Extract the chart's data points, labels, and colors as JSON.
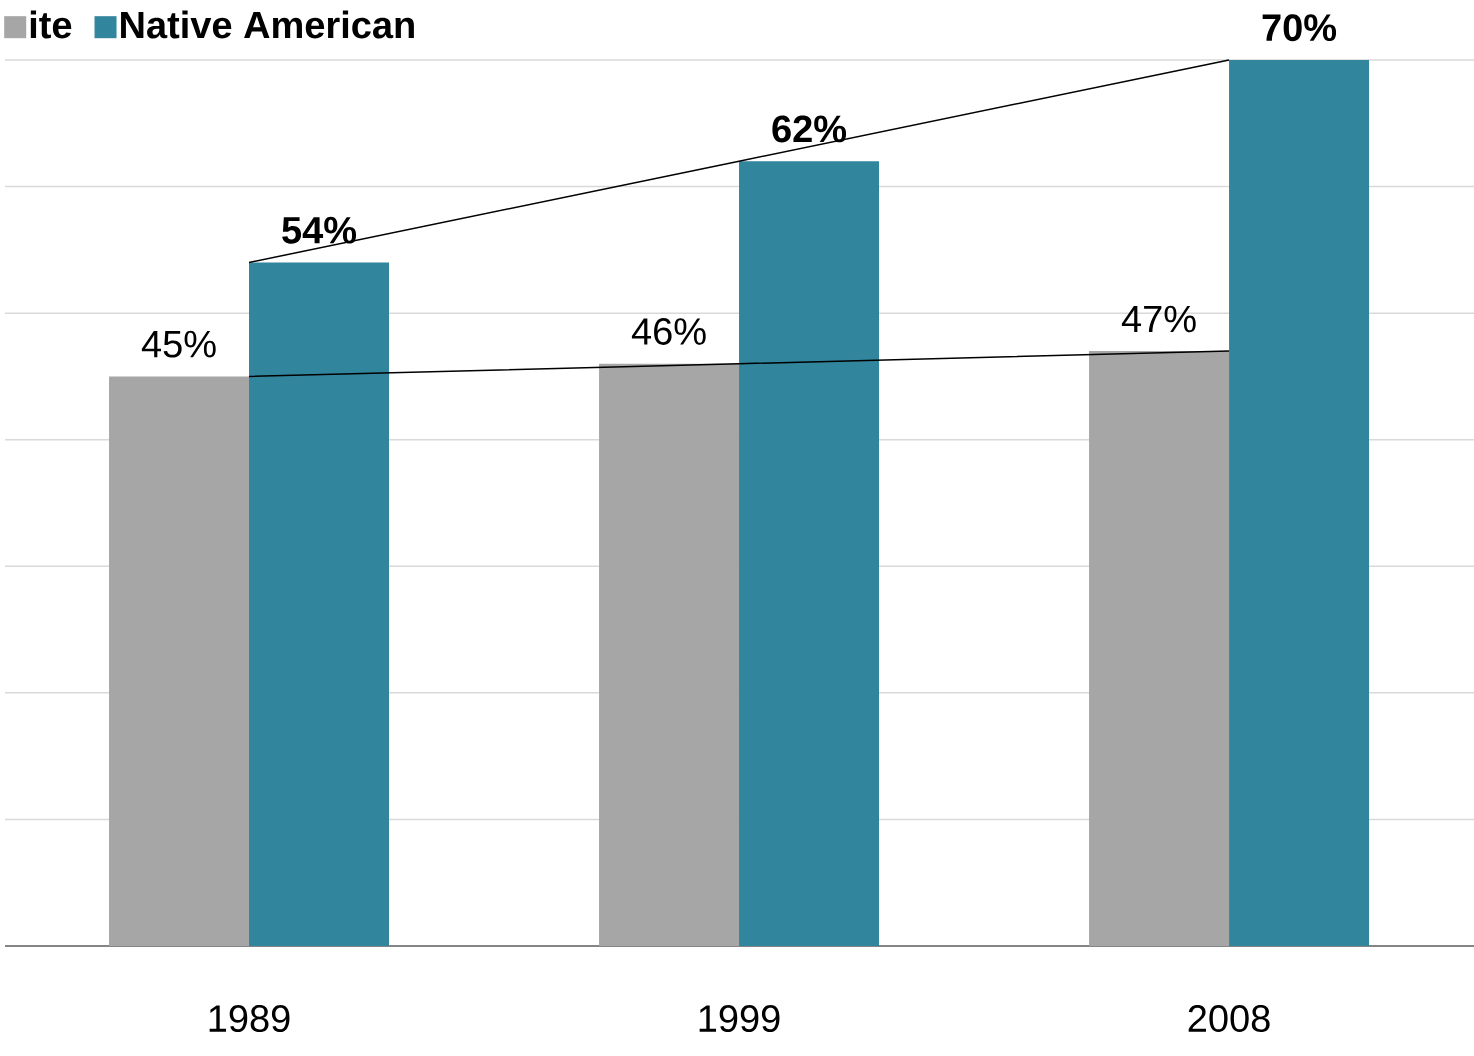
{
  "chart_data": {
    "type": "bar",
    "categories": [
      "1989",
      "1999",
      "2008"
    ],
    "series": [
      {
        "name": "ite",
        "color": "#a6a6a6",
        "values": [
          45,
          46,
          47
        ],
        "value_labels": [
          "45%",
          "46%",
          "47%"
        ]
      },
      {
        "name": "Native American",
        "color": "#31859c",
        "values": [
          54,
          62,
          70
        ],
        "value_labels": [
          "54%",
          "62%",
          "70%"
        ]
      },
      {
        "type": "line",
        "color": "#000000",
        "values": [
          45,
          46,
          47
        ]
      },
      {
        "type": "line",
        "color": "#000000",
        "values": [
          54,
          62,
          70
        ]
      }
    ],
    "ylim": [
      0,
      70
    ],
    "yticks": [
      {
        "value": 0,
        "label": null
      },
      {
        "value": 10,
        "label": null
      },
      {
        "value": 20,
        "label": null
      },
      {
        "value": 30,
        "label": null
      },
      {
        "value": 40,
        "label": null
      },
      {
        "value": 50,
        "label": null
      },
      {
        "value": 60,
        "label": null
      },
      {
        "value": 70,
        "label": null
      }
    ],
    "tick_labels": "x",
    "grid": "y",
    "legend": "top left",
    "marker": "none",
    "line_style": "solid"
  }
}
